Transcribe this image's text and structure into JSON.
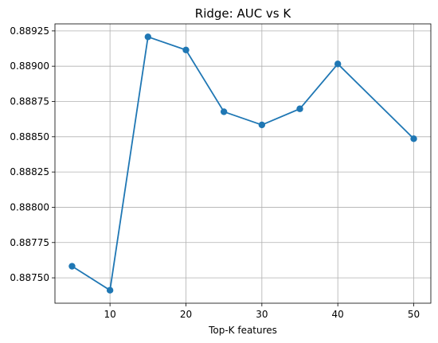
{
  "chart_data": {
    "type": "line",
    "title": "Ridge: AUC vs K",
    "xlabel": "Top-K features",
    "ylabel": "",
    "x": [
      5,
      10,
      15,
      20,
      25,
      30,
      35,
      40,
      50
    ],
    "y": [
      0.887582,
      0.887412,
      0.889208,
      0.889115,
      0.888677,
      0.888584,
      0.888698,
      0.889016,
      0.888486
    ],
    "xlim": [
      2.75,
      52.25
    ],
    "ylim": [
      0.88732,
      0.8893
    ],
    "xticks": [
      10,
      20,
      30,
      40,
      50
    ],
    "xtick_labels": [
      "10",
      "20",
      "30",
      "40",
      "50"
    ],
    "yticks": [
      0.8875,
      0.88775,
      0.888,
      0.88825,
      0.8885,
      0.88875,
      0.889,
      0.88925
    ],
    "ytick_labels": [
      "0.88750",
      "0.88775",
      "0.88800",
      "0.88825",
      "0.88850",
      "0.88875",
      "0.88900",
      "0.88925"
    ],
    "grid": true,
    "legend": "none",
    "line_color": "#1f77b4",
    "marker": "circle"
  }
}
